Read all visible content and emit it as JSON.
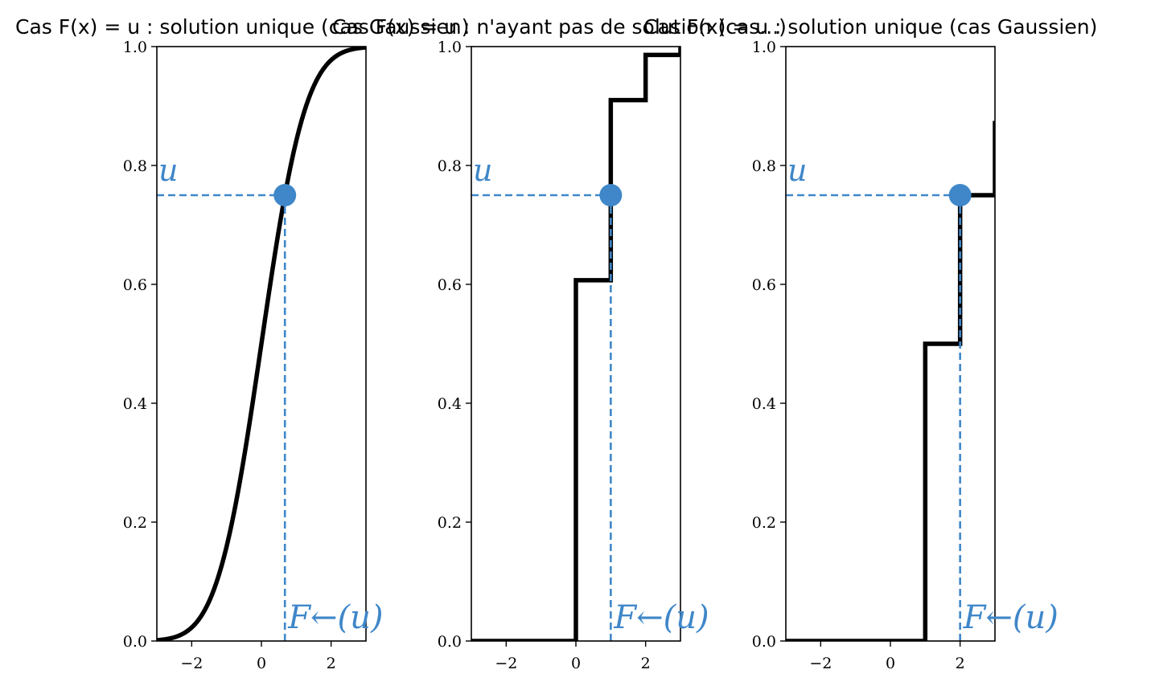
{
  "colors": {
    "curve": "#000000",
    "accent": "#3f87c9",
    "axes": "#000000"
  },
  "chart_data": [
    {
      "type": "line",
      "title": "Cas F(x) = u : solution unique (cas Gaussien)",
      "xlim": [
        -3,
        3
      ],
      "ylim": [
        0,
        1
      ],
      "xticks": [
        -2,
        0,
        2
      ],
      "xtick_labels": [
        "−2",
        "0",
        "2"
      ],
      "yticks": [
        0,
        0.2,
        0.4,
        0.6,
        0.8,
        1
      ],
      "ytick_labels": [
        "0.0",
        "0.2",
        "0.4",
        "0.6",
        "0.8",
        "1.0"
      ],
      "grid": false,
      "curve": "gaussian_cdf",
      "series": [
        {
          "x": [
            -3,
            -2.5,
            -2,
            -1.5,
            -1,
            -0.5,
            0,
            0.5,
            1,
            1.5,
            2,
            2.5,
            3
          ],
          "y": [
            0.001,
            0.006,
            0.023,
            0.067,
            0.159,
            0.309,
            0.5,
            0.691,
            0.841,
            0.933,
            0.977,
            0.994,
            0.999
          ]
        }
      ],
      "point": {
        "x": 0.674,
        "y": 0.75
      },
      "u_label": "u",
      "inverse_label": "F←(u)"
    },
    {
      "type": "line",
      "title": "Cas F(x) = u : n'ayant pas de solution (cas...)",
      "xlim": [
        -3,
        3
      ],
      "ylim": [
        0,
        1
      ],
      "xticks": [
        -2,
        0,
        2
      ],
      "xtick_labels": [
        "−2",
        "0",
        "2"
      ],
      "yticks": [
        0,
        0.2,
        0.4,
        0.6,
        0.8,
        1
      ],
      "ytick_labels": [
        "0.0",
        "0.2",
        "0.4",
        "0.6",
        "0.8",
        "1.0"
      ],
      "grid": false,
      "curve": "step",
      "steps": [
        {
          "x": -3,
          "y": 0
        },
        {
          "x": 0,
          "y": 0.607
        },
        {
          "x": 1,
          "y": 0.91
        },
        {
          "x": 2,
          "y": 0.986
        },
        {
          "x": 3,
          "y": 1
        }
      ],
      "point": {
        "x": 1,
        "y": 0.75
      },
      "u_label": "u",
      "inverse_label": "F←(u)"
    },
    {
      "type": "line",
      "title": "Cas F(x) = u : solution unique (cas Gaussien)",
      "xlim": [
        -3,
        3
      ],
      "ylim": [
        0,
        1
      ],
      "xticks": [
        -2,
        0,
        2
      ],
      "xtick_labels": [
        "−2",
        "0",
        "2"
      ],
      "yticks": [
        0,
        0.2,
        0.4,
        0.6,
        0.8,
        1
      ],
      "ytick_labels": [
        "0.0",
        "0.2",
        "0.4",
        "0.6",
        "0.8",
        "1.0"
      ],
      "grid": false,
      "curve": "step",
      "steps": [
        {
          "x": -3,
          "y": 0
        },
        {
          "x": 1,
          "y": 0.5
        },
        {
          "x": 2,
          "y": 0.75
        },
        {
          "x": 3,
          "y": 0.875
        }
      ],
      "point": {
        "x": 2,
        "y": 0.75
      },
      "u_label": "u",
      "inverse_label": "F←(u)"
    }
  ]
}
